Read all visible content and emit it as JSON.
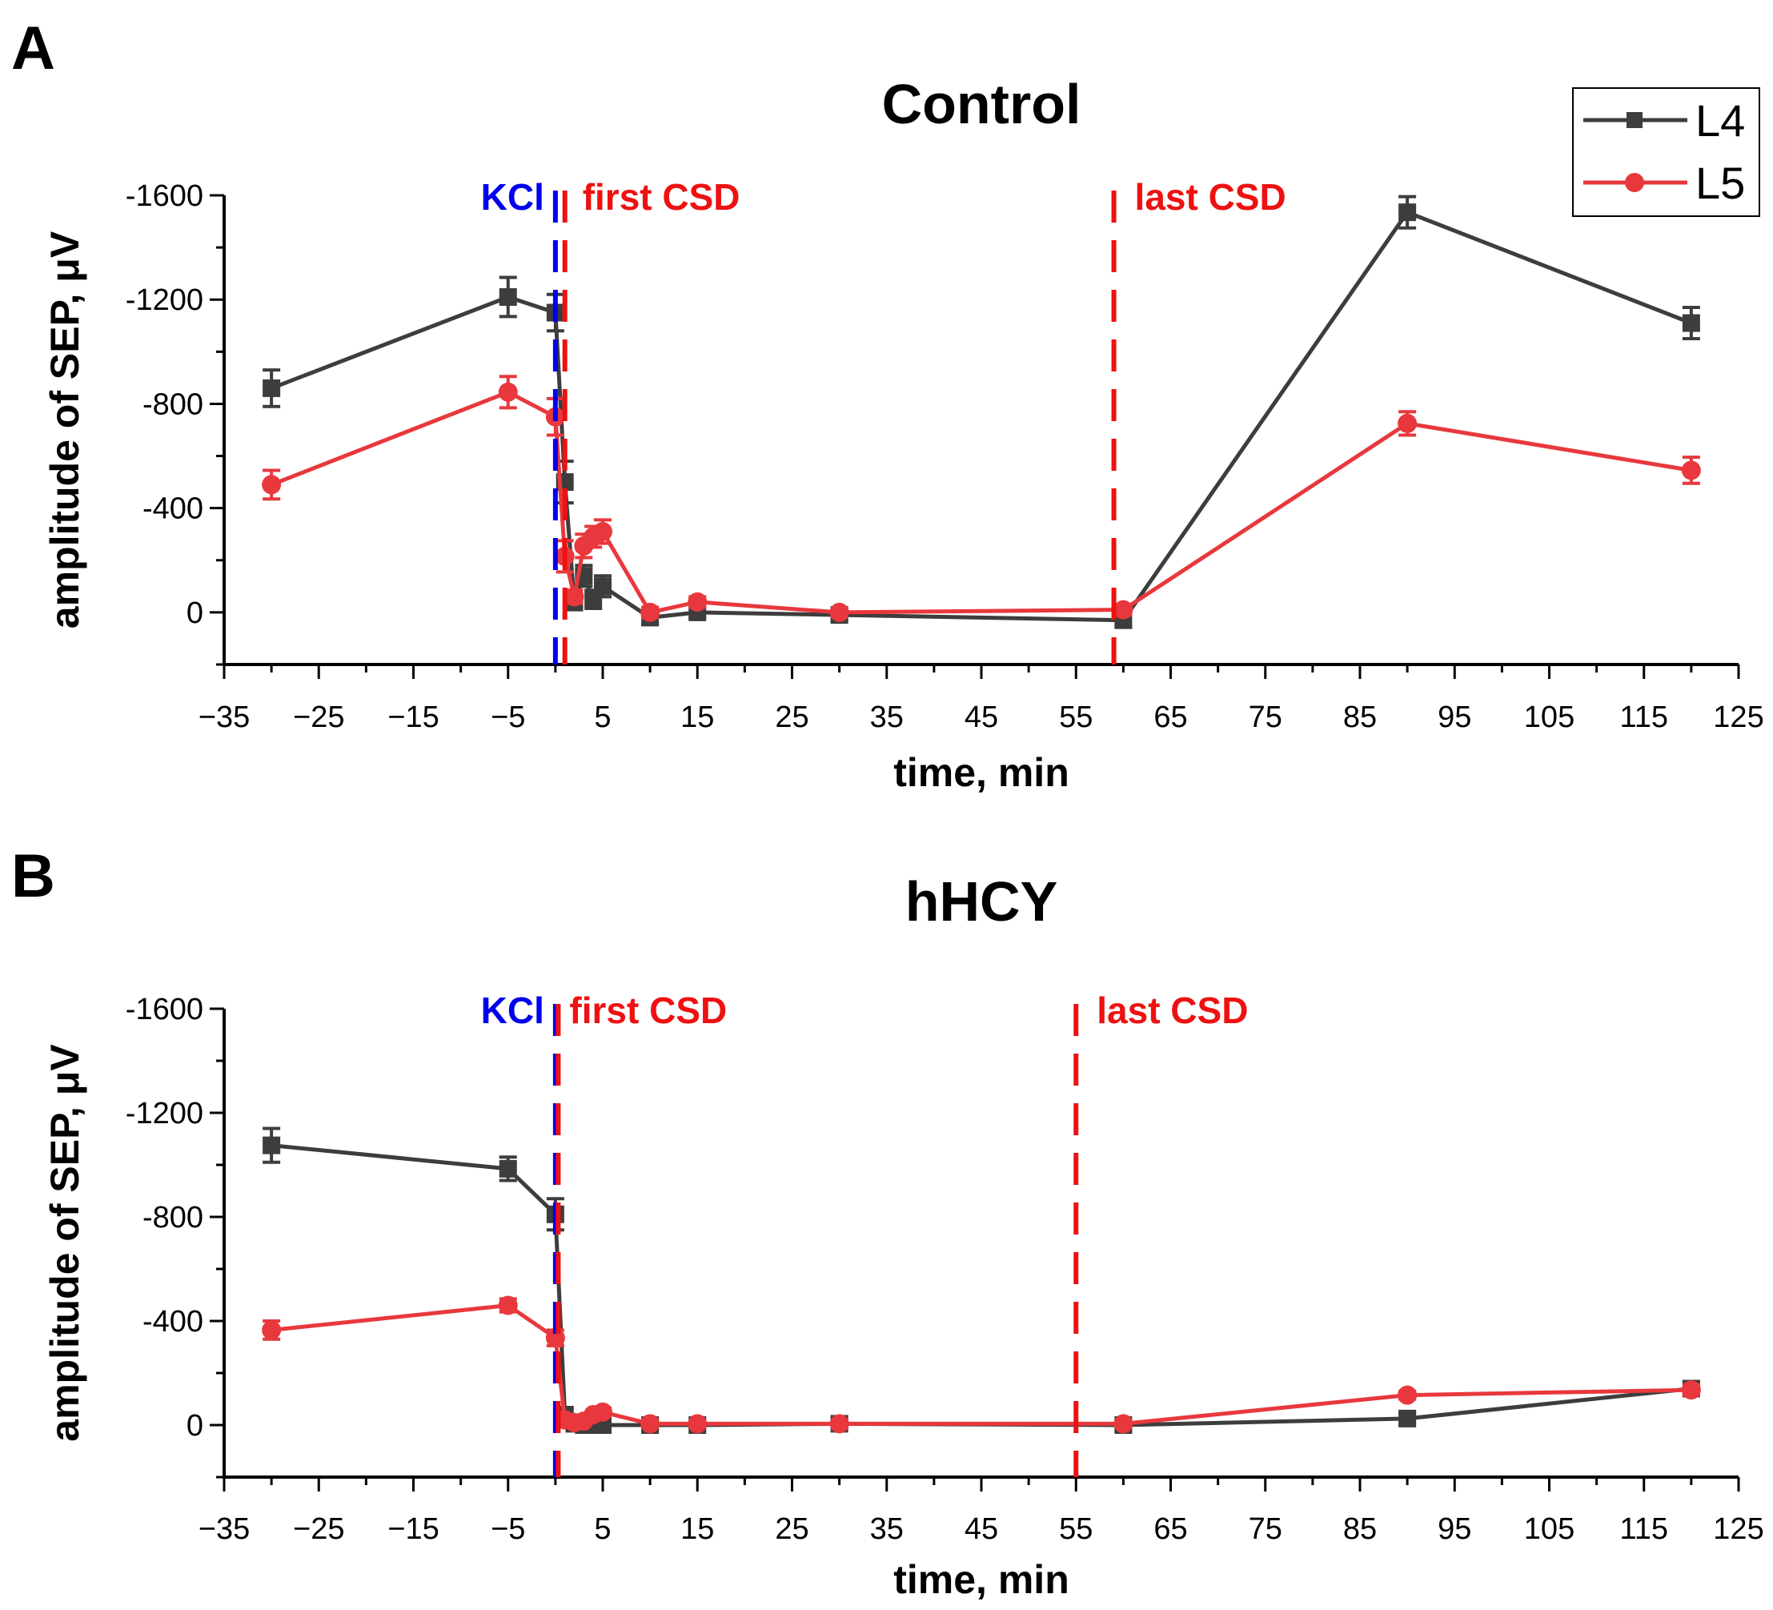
{
  "chart_data": [
    {
      "type": "line",
      "panel": "A",
      "title": "Control",
      "xlabel": "time, min",
      "ylabel": "amplitude of SEP, μV",
      "xlim": [
        -35,
        125
      ],
      "ylim": [
        200,
        -1600
      ],
      "xticks": [
        -35,
        -25,
        -15,
        -5,
        5,
        15,
        25,
        35,
        45,
        55,
        65,
        75,
        85,
        95,
        105,
        115,
        125
      ],
      "xtick_labels": [
        "−35",
        "−25",
        "−15",
        "−5",
        "5",
        "15",
        "25",
        "35",
        "45",
        "55",
        "65",
        "75",
        "85",
        "95",
        "105",
        "115",
        "125"
      ],
      "yticks": [
        -1600,
        -1200,
        -800,
        -400,
        0
      ],
      "ytick_labels": [
        "-1600",
        "-1200",
        "-800",
        "-400",
        "0"
      ],
      "legend": {
        "position": "top-right",
        "entries": [
          "L4",
          "L5"
        ]
      },
      "vlines": [
        {
          "x": 0,
          "label": "KCl",
          "color": "#0000ee"
        },
        {
          "x": 1,
          "label": "first CSD",
          "color": "#ee1111"
        },
        {
          "x": 59,
          "label": "last CSD",
          "color": "#ee1111"
        }
      ],
      "series": [
        {
          "name": "L4",
          "color": "#3d3d3d",
          "marker": "square",
          "x": [
            -30,
            -5,
            0,
            1,
            2,
            3,
            4,
            5,
            10,
            15,
            30,
            60,
            90,
            120
          ],
          "y": [
            -860,
            -1210,
            -1150,
            -500,
            -40,
            -140,
            -50,
            -100,
            20,
            0,
            10,
            30,
            -1535,
            -1110
          ],
          "err": [
            70,
            75,
            70,
            80,
            30,
            40,
            35,
            40,
            25,
            20,
            20,
            25,
            60,
            60
          ]
        },
        {
          "name": "L5",
          "color": "#e8383d",
          "marker": "circle",
          "x": [
            -30,
            -5,
            0,
            1,
            2,
            3,
            4,
            5,
            10,
            15,
            30,
            60,
            90,
            120
          ],
          "y": [
            -490,
            -845,
            -750,
            -215,
            -60,
            -255,
            -290,
            -310,
            0,
            -40,
            0,
            -10,
            -725,
            -545
          ],
          "err": [
            55,
            60,
            70,
            60,
            25,
            45,
            40,
            45,
            20,
            20,
            15,
            20,
            45,
            50
          ]
        }
      ]
    },
    {
      "type": "line",
      "panel": "B",
      "title": "hHCY",
      "xlabel": "time, min",
      "ylabel": "amplitude of SEP, μV",
      "xlim": [
        -35,
        125
      ],
      "ylim": [
        200,
        -1600
      ],
      "xticks": [
        -35,
        -25,
        -15,
        -5,
        5,
        15,
        25,
        35,
        45,
        55,
        65,
        75,
        85,
        95,
        105,
        115,
        125
      ],
      "xtick_labels": [
        "−35",
        "−25",
        "−15",
        "−5",
        "5",
        "15",
        "25",
        "35",
        "45",
        "55",
        "65",
        "75",
        "85",
        "95",
        "105",
        "115",
        "125"
      ],
      "yticks": [
        -1600,
        -1200,
        -800,
        -400,
        0
      ],
      "ytick_labels": [
        "-1600",
        "-1200",
        "-800",
        "-400",
        "0"
      ],
      "vlines": [
        {
          "x": 0,
          "label": "KCl",
          "color": "#0000ee"
        },
        {
          "x": 0.3,
          "label": "first CSD",
          "color": "#ee1111"
        },
        {
          "x": 55,
          "label": "last CSD",
          "color": "#ee1111"
        }
      ],
      "series": [
        {
          "name": "L4",
          "color": "#3d3d3d",
          "marker": "square",
          "x": [
            -30,
            -5,
            0,
            1,
            2,
            3,
            4,
            5,
            10,
            15,
            30,
            60,
            90,
            120
          ],
          "y": [
            -1075,
            -985,
            -810,
            -40,
            -5,
            0,
            0,
            0,
            0,
            0,
            -5,
            0,
            -25,
            -140
          ],
          "err": [
            65,
            45,
            60,
            25,
            15,
            15,
            15,
            15,
            15,
            15,
            15,
            15,
            20,
            25
          ]
        },
        {
          "name": "L5",
          "color": "#e8383d",
          "marker": "circle",
          "x": [
            -30,
            -5,
            0,
            1,
            2,
            3,
            4,
            5,
            10,
            15,
            30,
            60,
            90,
            120
          ],
          "y": [
            -365,
            -460,
            -335,
            -20,
            -10,
            -15,
            -40,
            -50,
            -5,
            -5,
            -5,
            -5,
            -115,
            -135
          ],
          "err": [
            35,
            25,
            30,
            15,
            10,
            10,
            10,
            15,
            10,
            10,
            10,
            10,
            15,
            20
          ]
        }
      ]
    }
  ],
  "panel_letters": [
    "A",
    "B"
  ]
}
